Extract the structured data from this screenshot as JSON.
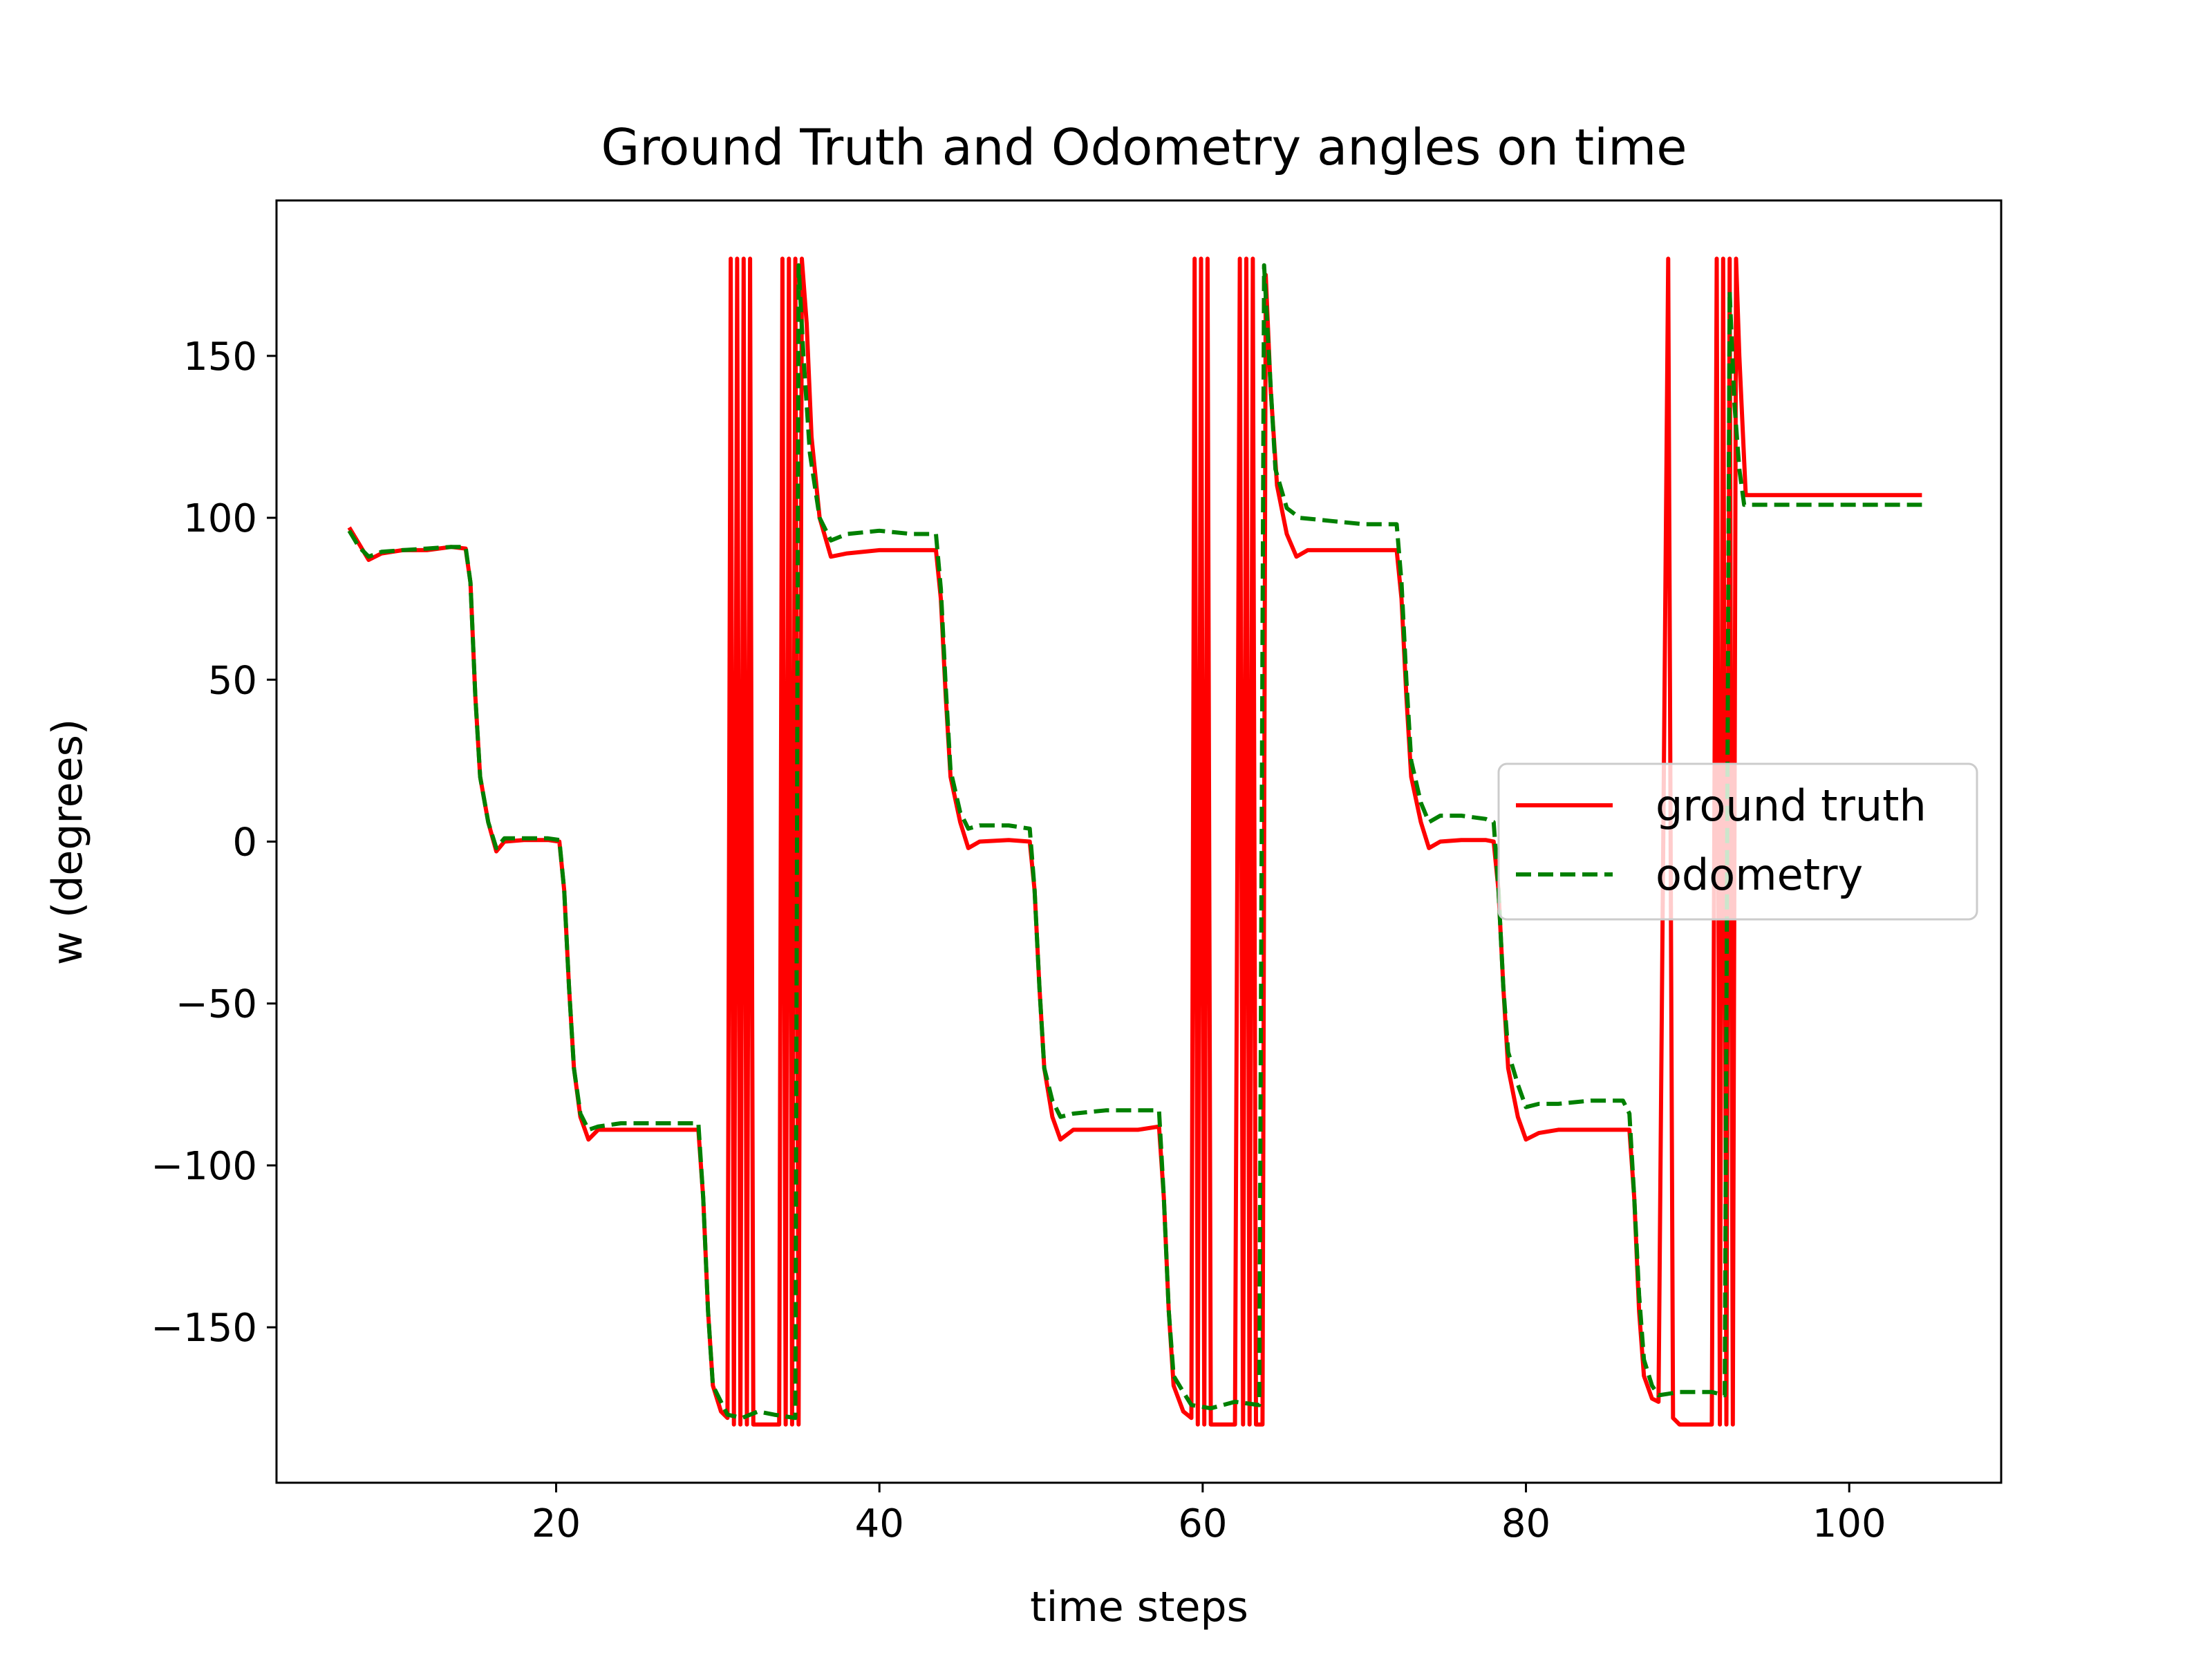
{
  "chart_data": {
    "type": "line",
    "title": "Ground Truth and Odometry angles on time",
    "xlabel": "time steps",
    "ylabel": "w (degrees)",
    "xlim": [
      2.7,
      109.4
    ],
    "ylim": [
      -198,
      198
    ],
    "xticks": [
      20,
      40,
      60,
      80,
      100
    ],
    "yticks": [
      150,
      100,
      50,
      0,
      -50,
      -100,
      -150
    ],
    "ytick_labels": [
      "150",
      "100",
      "50",
      "0",
      "−50",
      "−100",
      "−150"
    ],
    "grid": false,
    "legend_position": "center-right",
    "series": [
      {
        "name": "ground truth",
        "color": "#ff0000",
        "style": "solid",
        "points": [
          [
            7.2,
            97
          ],
          [
            7.8,
            92
          ],
          [
            8.4,
            87
          ],
          [
            9.2,
            89
          ],
          [
            10.5,
            90
          ],
          [
            12,
            90
          ],
          [
            13.5,
            91
          ],
          [
            14.4,
            90.5
          ],
          [
            14.7,
            80
          ],
          [
            15,
            45
          ],
          [
            15.3,
            20
          ],
          [
            15.8,
            6
          ],
          [
            16.3,
            -3
          ],
          [
            16.8,
            0
          ],
          [
            18,
            0.5
          ],
          [
            19.5,
            0.5
          ],
          [
            20.2,
            0
          ],
          [
            20.5,
            -15
          ],
          [
            20.8,
            -45
          ],
          [
            21.1,
            -70
          ],
          [
            21.5,
            -85
          ],
          [
            22,
            -92
          ],
          [
            22.6,
            -89
          ],
          [
            24,
            -89
          ],
          [
            26,
            -89
          ],
          [
            28,
            -89
          ],
          [
            28.8,
            -89
          ],
          [
            29.1,
            -110
          ],
          [
            29.4,
            -145
          ],
          [
            29.7,
            -168
          ],
          [
            30.2,
            -176
          ],
          [
            30.6,
            -178
          ],
          [
            30.8,
            180
          ],
          [
            31,
            -180
          ],
          [
            31.2,
            180
          ],
          [
            31.4,
            -180
          ],
          [
            31.6,
            180
          ],
          [
            31.8,
            -180
          ],
          [
            32,
            180
          ],
          [
            32.2,
            -180
          ],
          [
            33.8,
            -180
          ],
          [
            34,
            180
          ],
          [
            34.2,
            -180
          ],
          [
            34.4,
            180
          ],
          [
            34.6,
            -180
          ],
          [
            34.8,
            180
          ],
          [
            35,
            -180
          ],
          [
            35.2,
            180
          ],
          [
            35.5,
            160
          ],
          [
            35.8,
            125
          ],
          [
            36.3,
            100
          ],
          [
            37,
            88
          ],
          [
            38,
            89
          ],
          [
            40,
            90
          ],
          [
            42,
            90
          ],
          [
            43.5,
            90
          ],
          [
            43.8,
            75
          ],
          [
            44.1,
            45
          ],
          [
            44.4,
            20
          ],
          [
            45,
            6
          ],
          [
            45.5,
            -2
          ],
          [
            46.2,
            0
          ],
          [
            48,
            0.5
          ],
          [
            49.3,
            0
          ],
          [
            49.6,
            -15
          ],
          [
            49.9,
            -45
          ],
          [
            50.2,
            -70
          ],
          [
            50.7,
            -85
          ],
          [
            51.2,
            -92
          ],
          [
            52,
            -89
          ],
          [
            54,
            -89
          ],
          [
            56,
            -89
          ],
          [
            57.3,
            -88
          ],
          [
            57.6,
            -110
          ],
          [
            57.9,
            -145
          ],
          [
            58.2,
            -168
          ],
          [
            58.8,
            -176
          ],
          [
            59.3,
            -178
          ],
          [
            59.5,
            180
          ],
          [
            59.7,
            -180
          ],
          [
            59.9,
            180
          ],
          [
            60.1,
            -180
          ],
          [
            60.3,
            180
          ],
          [
            60.5,
            -180
          ],
          [
            62,
            -180
          ],
          [
            62.3,
            180
          ],
          [
            62.5,
            -180
          ],
          [
            62.7,
            180
          ],
          [
            62.9,
            -180
          ],
          [
            63.1,
            180
          ],
          [
            63.3,
            -180
          ],
          [
            63.7,
            -180
          ],
          [
            63.9,
            175
          ],
          [
            64.2,
            140
          ],
          [
            64.6,
            110
          ],
          [
            65.2,
            95
          ],
          [
            65.8,
            88
          ],
          [
            66.5,
            90
          ],
          [
            68,
            90
          ],
          [
            70,
            90
          ],
          [
            72,
            90
          ],
          [
            72.3,
            75
          ],
          [
            72.6,
            45
          ],
          [
            72.9,
            20
          ],
          [
            73.5,
            6
          ],
          [
            74,
            -2
          ],
          [
            74.7,
            0
          ],
          [
            76,
            0.5
          ],
          [
            77.5,
            0.5
          ],
          [
            78,
            0
          ],
          [
            78.3,
            -15
          ],
          [
            78.6,
            -45
          ],
          [
            78.9,
            -70
          ],
          [
            79.5,
            -85
          ],
          [
            80,
            -92
          ],
          [
            80.8,
            -90
          ],
          [
            82,
            -89
          ],
          [
            84,
            -89
          ],
          [
            86,
            -89
          ],
          [
            86.4,
            -89
          ],
          [
            86.7,
            -110
          ],
          [
            87,
            -145
          ],
          [
            87.3,
            -165
          ],
          [
            87.8,
            -172
          ],
          [
            88.2,
            -173
          ],
          [
            88.8,
            180
          ],
          [
            89.1,
            -178
          ],
          [
            89.5,
            -180
          ],
          [
            91.5,
            -180
          ],
          [
            91.8,
            180
          ],
          [
            92,
            -180
          ],
          [
            92.2,
            180
          ],
          [
            92.4,
            -180
          ],
          [
            92.6,
            180
          ],
          [
            92.8,
            -180
          ],
          [
            93,
            180
          ],
          [
            93.2,
            150
          ],
          [
            93.6,
            107
          ],
          [
            96,
            107
          ],
          [
            100,
            107
          ],
          [
            104.5,
            107
          ]
        ]
      },
      {
        "name": "odometry",
        "color": "#008000",
        "style": "dashed",
        "points": [
          [
            7.2,
            96
          ],
          [
            7.8,
            91
          ],
          [
            8.4,
            88
          ],
          [
            9.2,
            89.5
          ],
          [
            10.5,
            90
          ],
          [
            12,
            90.5
          ],
          [
            13.5,
            91
          ],
          [
            14.4,
            91
          ],
          [
            14.7,
            80
          ],
          [
            15,
            45
          ],
          [
            15.3,
            20
          ],
          [
            15.8,
            6
          ],
          [
            16.3,
            -2
          ],
          [
            16.8,
            1
          ],
          [
            18,
            1
          ],
          [
            19.5,
            1
          ],
          [
            20.2,
            0.5
          ],
          [
            20.5,
            -15
          ],
          [
            20.8,
            -45
          ],
          [
            21.1,
            -70
          ],
          [
            21.5,
            -84
          ],
          [
            22,
            -89
          ],
          [
            22.6,
            -88
          ],
          [
            24,
            -87
          ],
          [
            26,
            -87
          ],
          [
            28,
            -87
          ],
          [
            28.8,
            -87
          ],
          [
            29.1,
            -110
          ],
          [
            29.4,
            -145
          ],
          [
            29.7,
            -168
          ],
          [
            30.2,
            -173
          ],
          [
            30.6,
            -177
          ],
          [
            31.5,
            -178
          ],
          [
            32.5,
            -176
          ],
          [
            33.5,
            -177
          ],
          [
            34.8,
            -178
          ],
          [
            35,
            178
          ],
          [
            35.3,
            150
          ],
          [
            35.7,
            120
          ],
          [
            36.3,
            100
          ],
          [
            37,
            93
          ],
          [
            38,
            95
          ],
          [
            40,
            96
          ],
          [
            42,
            95
          ],
          [
            43.5,
            95
          ],
          [
            43.8,
            78
          ],
          [
            44.1,
            48
          ],
          [
            44.4,
            22
          ],
          [
            45,
            9
          ],
          [
            45.5,
            4
          ],
          [
            46.2,
            5
          ],
          [
            48,
            5
          ],
          [
            49.3,
            4
          ],
          [
            49.6,
            -15
          ],
          [
            49.9,
            -45
          ],
          [
            50.2,
            -70
          ],
          [
            50.7,
            -80
          ],
          [
            51.2,
            -85
          ],
          [
            52,
            -84
          ],
          [
            54,
            -83
          ],
          [
            56,
            -83
          ],
          [
            57.3,
            -83
          ],
          [
            57.6,
            -110
          ],
          [
            57.9,
            -145
          ],
          [
            58.2,
            -165
          ],
          [
            58.8,
            -170
          ],
          [
            59.3,
            -174
          ],
          [
            60.5,
            -175
          ],
          [
            62,
            -173
          ],
          [
            63.5,
            -174
          ],
          [
            63.8,
            178
          ],
          [
            64.1,
            150
          ],
          [
            64.5,
            115
          ],
          [
            65.2,
            103
          ],
          [
            66,
            100
          ],
          [
            68,
            99
          ],
          [
            70,
            98
          ],
          [
            72,
            98
          ],
          [
            72.3,
            80
          ],
          [
            72.6,
            50
          ],
          [
            72.9,
            25
          ],
          [
            73.5,
            12
          ],
          [
            74,
            6
          ],
          [
            74.7,
            8
          ],
          [
            76,
            8
          ],
          [
            77.5,
            7
          ],
          [
            78,
            6
          ],
          [
            78.3,
            -15
          ],
          [
            78.6,
            -45
          ],
          [
            78.9,
            -65
          ],
          [
            79.5,
            -75
          ],
          [
            80,
            -82
          ],
          [
            80.8,
            -81
          ],
          [
            82,
            -81
          ],
          [
            84,
            -80
          ],
          [
            86,
            -80
          ],
          [
            86.4,
            -84
          ],
          [
            86.7,
            -110
          ],
          [
            87,
            -140
          ],
          [
            87.3,
            -160
          ],
          [
            87.8,
            -168
          ],
          [
            88.2,
            -171
          ],
          [
            89.5,
            -170
          ],
          [
            91.5,
            -170
          ],
          [
            92.3,
            -171
          ],
          [
            92.6,
            170
          ],
          [
            92.9,
            135
          ],
          [
            93.2,
            115
          ],
          [
            93.5,
            104
          ],
          [
            96,
            104
          ],
          [
            100,
            104
          ],
          [
            104.5,
            104
          ]
        ]
      }
    ]
  }
}
